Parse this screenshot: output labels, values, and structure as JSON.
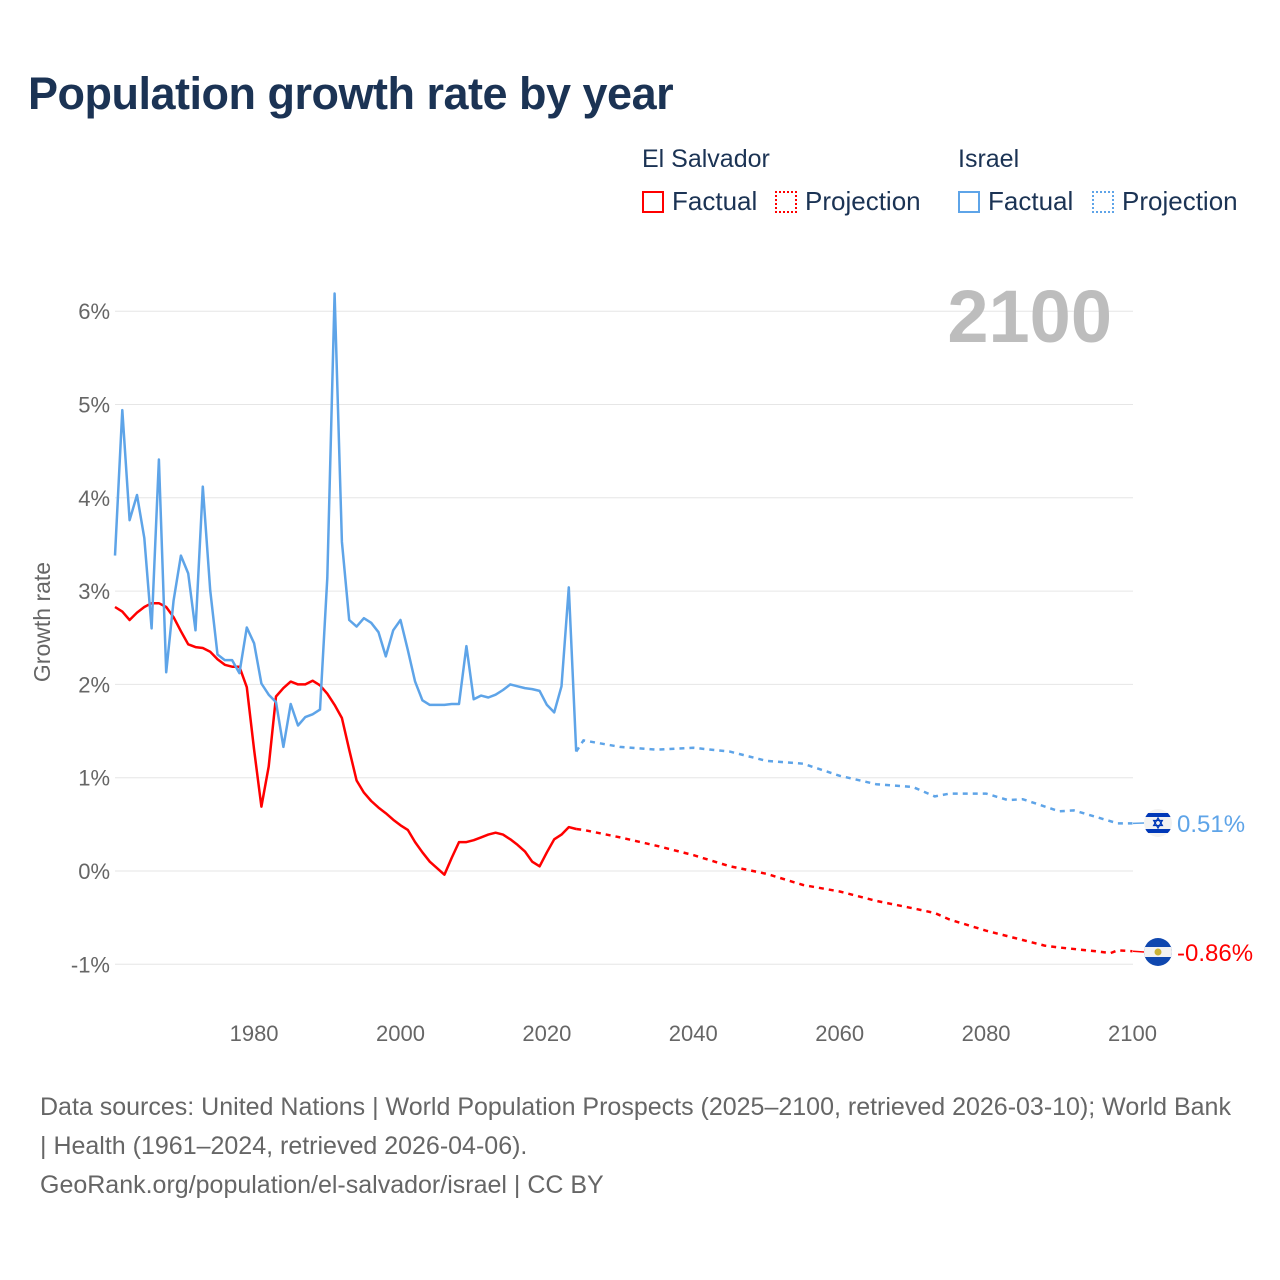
{
  "title": "Population growth rate by year",
  "legend": {
    "groups": [
      {
        "name": "El Salvador",
        "factual": "Factual",
        "projection": "Projection",
        "color": "#ff0000"
      },
      {
        "name": "Israel",
        "factual": "Factual",
        "projection": "Projection",
        "color": "#5ea4e8"
      }
    ]
  },
  "current_year_label": "2100",
  "source": {
    "line1": "Data sources: United Nations | World Population Prospects (2025–2100, retrieved 2026-03-10); World Bank | Health (1961–2024, retrieved 2026-04-06).",
    "line2": "GeoRank.org/population/el-salvador/israel | CC BY"
  },
  "chart_data": {
    "type": "line",
    "title": "Population growth rate by year",
    "xlabel": "",
    "ylabel": "Growth rate",
    "xlim": [
      1961,
      2100
    ],
    "ylim": [
      -1.4,
      6.4
    ],
    "x_ticks": [
      1980,
      2000,
      2020,
      2040,
      2060,
      2080,
      2100
    ],
    "x_tick_labels": [
      "1980",
      "2000",
      "2020",
      "2040",
      "2060",
      "2080",
      "2100"
    ],
    "y_ticks": [
      -1,
      0,
      1,
      2,
      3,
      4,
      5,
      6
    ],
    "y_tick_labels": [
      "-1%",
      "0%",
      "1%",
      "2%",
      "3%",
      "4%",
      "5%",
      "6%"
    ],
    "grid": true,
    "legend_position": "top-right",
    "series": [
      {
        "name": "El Salvador",
        "color": "#ff0000",
        "end_label": "-0.86%",
        "factual": {
          "x": [
            1961,
            1962,
            1963,
            1964,
            1965,
            1966,
            1967,
            1968,
            1969,
            1970,
            1971,
            1972,
            1973,
            1974,
            1975,
            1976,
            1977,
            1978,
            1979,
            1980,
            1981,
            1982,
            1983,
            1984,
            1985,
            1986,
            1987,
            1988,
            1989,
            1990,
            1991,
            1992,
            1993,
            1994,
            1995,
            1996,
            1997,
            1998,
            1999,
            2000,
            2001,
            2002,
            2003,
            2004,
            2005,
            2006,
            2007,
            2008,
            2009,
            2010,
            2011,
            2012,
            2013,
            2014,
            2015,
            2016,
            2017,
            2018,
            2019,
            2020,
            2021,
            2022,
            2023,
            2024
          ],
          "y": [
            2.83,
            2.78,
            2.69,
            2.77,
            2.83,
            2.87,
            2.87,
            2.83,
            2.72,
            2.57,
            2.43,
            2.4,
            2.39,
            2.35,
            2.27,
            2.21,
            2.19,
            2.19,
            1.97,
            1.3,
            0.69,
            1.12,
            1.87,
            1.96,
            2.03,
            2.0,
            2.0,
            2.04,
            1.99,
            1.9,
            1.78,
            1.64,
            1.3,
            0.97,
            0.84,
            0.75,
            0.68,
            0.62,
            0.55,
            0.49,
            0.44,
            0.31,
            0.2,
            0.1,
            0.03,
            -0.04,
            0.14,
            0.31,
            0.31,
            0.33,
            0.36,
            0.39,
            0.41,
            0.39,
            0.34,
            0.28,
            0.21,
            0.1,
            0.05,
            0.2,
            0.34,
            0.39,
            0.47,
            0.45
          ]
        },
        "projection": {
          "x": [
            2024,
            2025,
            2030,
            2035,
            2040,
            2045,
            2050,
            2055,
            2060,
            2065,
            2070,
            2073,
            2075,
            2080,
            2085,
            2088,
            2090,
            2095,
            2097,
            2098,
            2100
          ],
          "y": [
            0.45,
            0.44,
            0.36,
            0.27,
            0.17,
            0.05,
            -0.03,
            -0.15,
            -0.22,
            -0.32,
            -0.4,
            -0.45,
            -0.52,
            -0.64,
            -0.74,
            -0.8,
            -0.82,
            -0.86,
            -0.88,
            -0.85,
            -0.86
          ]
        }
      },
      {
        "name": "Israel",
        "color": "#5ea4e8",
        "end_label": "0.51%",
        "factual": {
          "x": [
            1961,
            1962,
            1963,
            1964,
            1965,
            1966,
            1967,
            1968,
            1969,
            1970,
            1971,
            1972,
            1973,
            1974,
            1975,
            1976,
            1977,
            1978,
            1979,
            1980,
            1981,
            1982,
            1983,
            1984,
            1985,
            1986,
            1987,
            1988,
            1989,
            1990,
            1991,
            1992,
            1993,
            1994,
            1995,
            1996,
            1997,
            1998,
            1999,
            2000,
            2001,
            2002,
            2003,
            2004,
            2005,
            2006,
            2007,
            2008,
            2009,
            2010,
            2011,
            2012,
            2013,
            2014,
            2015,
            2016,
            2017,
            2018,
            2019,
            2020,
            2021,
            2022,
            2023,
            2024
          ],
          "y": [
            3.38,
            4.94,
            3.76,
            4.03,
            3.57,
            2.6,
            4.41,
            2.13,
            2.9,
            3.38,
            3.19,
            2.58,
            4.12,
            3.01,
            2.32,
            2.26,
            2.26,
            2.12,
            2.61,
            2.44,
            2.01,
            1.89,
            1.81,
            1.33,
            1.79,
            1.56,
            1.65,
            1.68,
            1.73,
            3.14,
            6.19,
            3.53,
            2.69,
            2.62,
            2.71,
            2.66,
            2.56,
            2.3,
            2.58,
            2.69,
            2.37,
            2.03,
            1.83,
            1.78,
            1.78,
            1.78,
            1.79,
            1.79,
            2.41,
            1.84,
            1.88,
            1.86,
            1.89,
            1.94,
            2.0,
            1.98,
            1.96,
            1.95,
            1.93,
            1.78,
            1.7,
            1.98,
            3.04,
            1.28
          ]
        },
        "projection": {
          "x": [
            2024,
            2025,
            2030,
            2035,
            2040,
            2045,
            2050,
            2055,
            2060,
            2065,
            2070,
            2073,
            2075,
            2080,
            2083,
            2085,
            2090,
            2092,
            2095,
            2098,
            2100
          ],
          "y": [
            1.28,
            1.4,
            1.33,
            1.3,
            1.32,
            1.28,
            1.18,
            1.15,
            1.02,
            0.93,
            0.9,
            0.8,
            0.83,
            0.83,
            0.76,
            0.77,
            0.64,
            0.65,
            0.58,
            0.51,
            0.51
          ]
        }
      }
    ]
  }
}
